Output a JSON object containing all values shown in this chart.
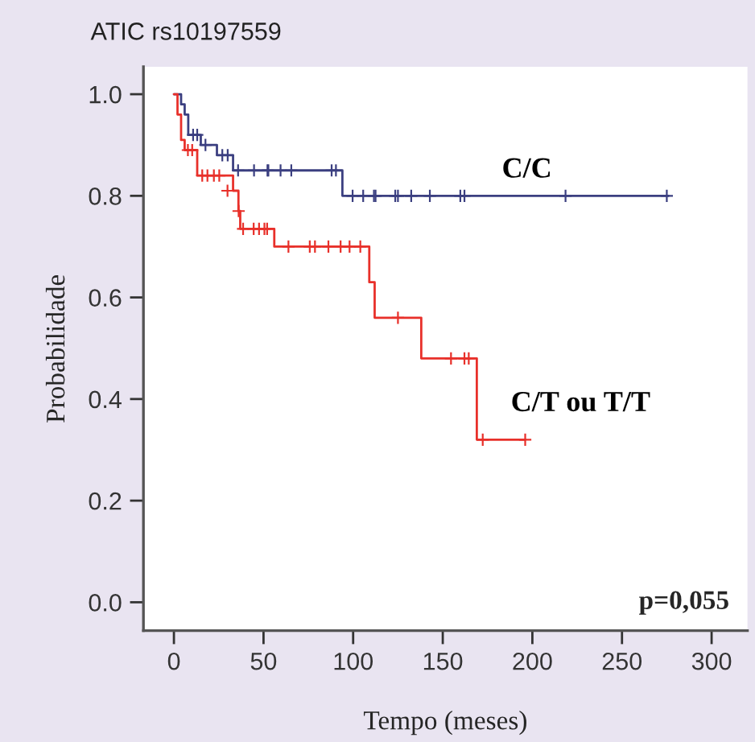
{
  "chart_data": {
    "type": "step",
    "title": "ATIC rs10197559",
    "xlabel": "Tempo (meses)",
    "ylabel": "Probabilidade",
    "xlim": [
      -17,
      320
    ],
    "ylim": [
      -0.056,
      1.054
    ],
    "xticks": [
      0,
      50,
      100,
      150,
      200,
      250,
      300
    ],
    "yticks": [
      {
        "value": 0,
        "label": "0.0"
      },
      {
        "value": 0.2,
        "label": "0.2"
      },
      {
        "value": 0.4,
        "label": "0.4"
      },
      {
        "value": 0.6,
        "label": "0.6"
      },
      {
        "value": 0.8,
        "label": "0.8"
      },
      {
        "value": 1,
        "label": "1.0"
      }
    ],
    "grid": false,
    "legend": false,
    "series": [
      {
        "name": "C/C",
        "color": "#3b3f80",
        "marker": "none",
        "x": [
          0,
          4,
          6,
          8,
          15,
          24,
          33,
          94,
          276
        ],
        "values": [
          1.0,
          0.98,
          0.96,
          0.92,
          0.9,
          0.88,
          0.85,
          0.8,
          0.8
        ]
      },
      {
        "name": "C/T ou T/T",
        "color": "#e8302a",
        "marker": "none",
        "x": [
          0,
          2,
          4,
          6,
          13,
          33,
          36,
          37,
          56,
          109,
          112,
          138,
          169,
          196
        ],
        "values": [
          1.0,
          0.96,
          0.91,
          0.89,
          0.84,
          0.81,
          0.77,
          0.735,
          0.7,
          0.63,
          0.56,
          0.48,
          0.32,
          0.32
        ]
      },
      {
        "type": "scatter",
        "color": "#3b3f80",
        "marker": "cross",
        "x": [
          10.7,
          13,
          17.6,
          27,
          30,
          35.8,
          44.7,
          52.2,
          52.7,
          59.5,
          65.5,
          88,
          90.4,
          99.7,
          105.6,
          111.6,
          112.5,
          123.5,
          125,
          132.4,
          142.8,
          159.8,
          162.1,
          218.5,
          275
        ],
        "values": [
          0.92,
          0.92,
          0.9,
          0.88,
          0.88,
          0.85,
          0.85,
          0.85,
          0.85,
          0.85,
          0.85,
          0.85,
          0.85,
          0.8,
          0.8,
          0.8,
          0.8,
          0.8,
          0.8,
          0.8,
          0.8,
          0.8,
          0.8,
          0.8,
          0.8
        ]
      },
      {
        "type": "scatter",
        "color": "#e8302a",
        "marker": "cross",
        "x": [
          7.8,
          10.2,
          15.8,
          18.7,
          22.3,
          25.3,
          29.9,
          36.1,
          38.6,
          44.5,
          47.5,
          50.5,
          52,
          63.9,
          75.8,
          78.7,
          86.2,
          93,
          98,
          104,
          125,
          154.6,
          162.1,
          164.5,
          172.3,
          196
        ],
        "values": [
          0.89,
          0.89,
          0.84,
          0.84,
          0.84,
          0.84,
          0.81,
          0.77,
          0.735,
          0.735,
          0.735,
          0.735,
          0.735,
          0.7,
          0.7,
          0.7,
          0.7,
          0.7,
          0.7,
          0.7,
          0.56,
          0.48,
          0.48,
          0.48,
          0.32,
          0.32
        ]
      }
    ],
    "annotations": [
      "p=0,055"
    ]
  }
}
